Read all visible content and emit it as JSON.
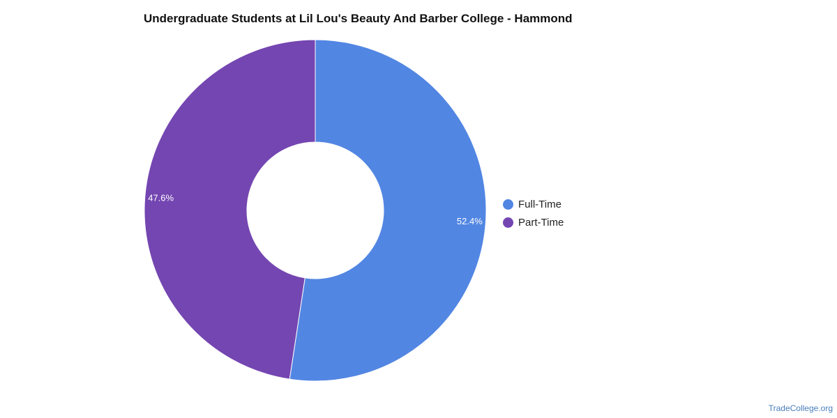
{
  "chart_data": {
    "type": "pie",
    "title": "Undergraduate Students at Lil Lou's Beauty And Barber College - Hammond",
    "donut": true,
    "categories": [
      "Full-Time",
      "Part-Time"
    ],
    "values": [
      52.4,
      47.6
    ],
    "data_labels": [
      "52.4%",
      "47.6%"
    ],
    "colors": [
      "#5286e3",
      "#7446b1"
    ],
    "legend_placement": "right"
  },
  "legend": {
    "items": [
      {
        "label": "Full-Time",
        "color": "#5286e3"
      },
      {
        "label": "Part-Time",
        "color": "#7446b1"
      }
    ]
  },
  "footer": {
    "source": "TradeCollege.org"
  }
}
